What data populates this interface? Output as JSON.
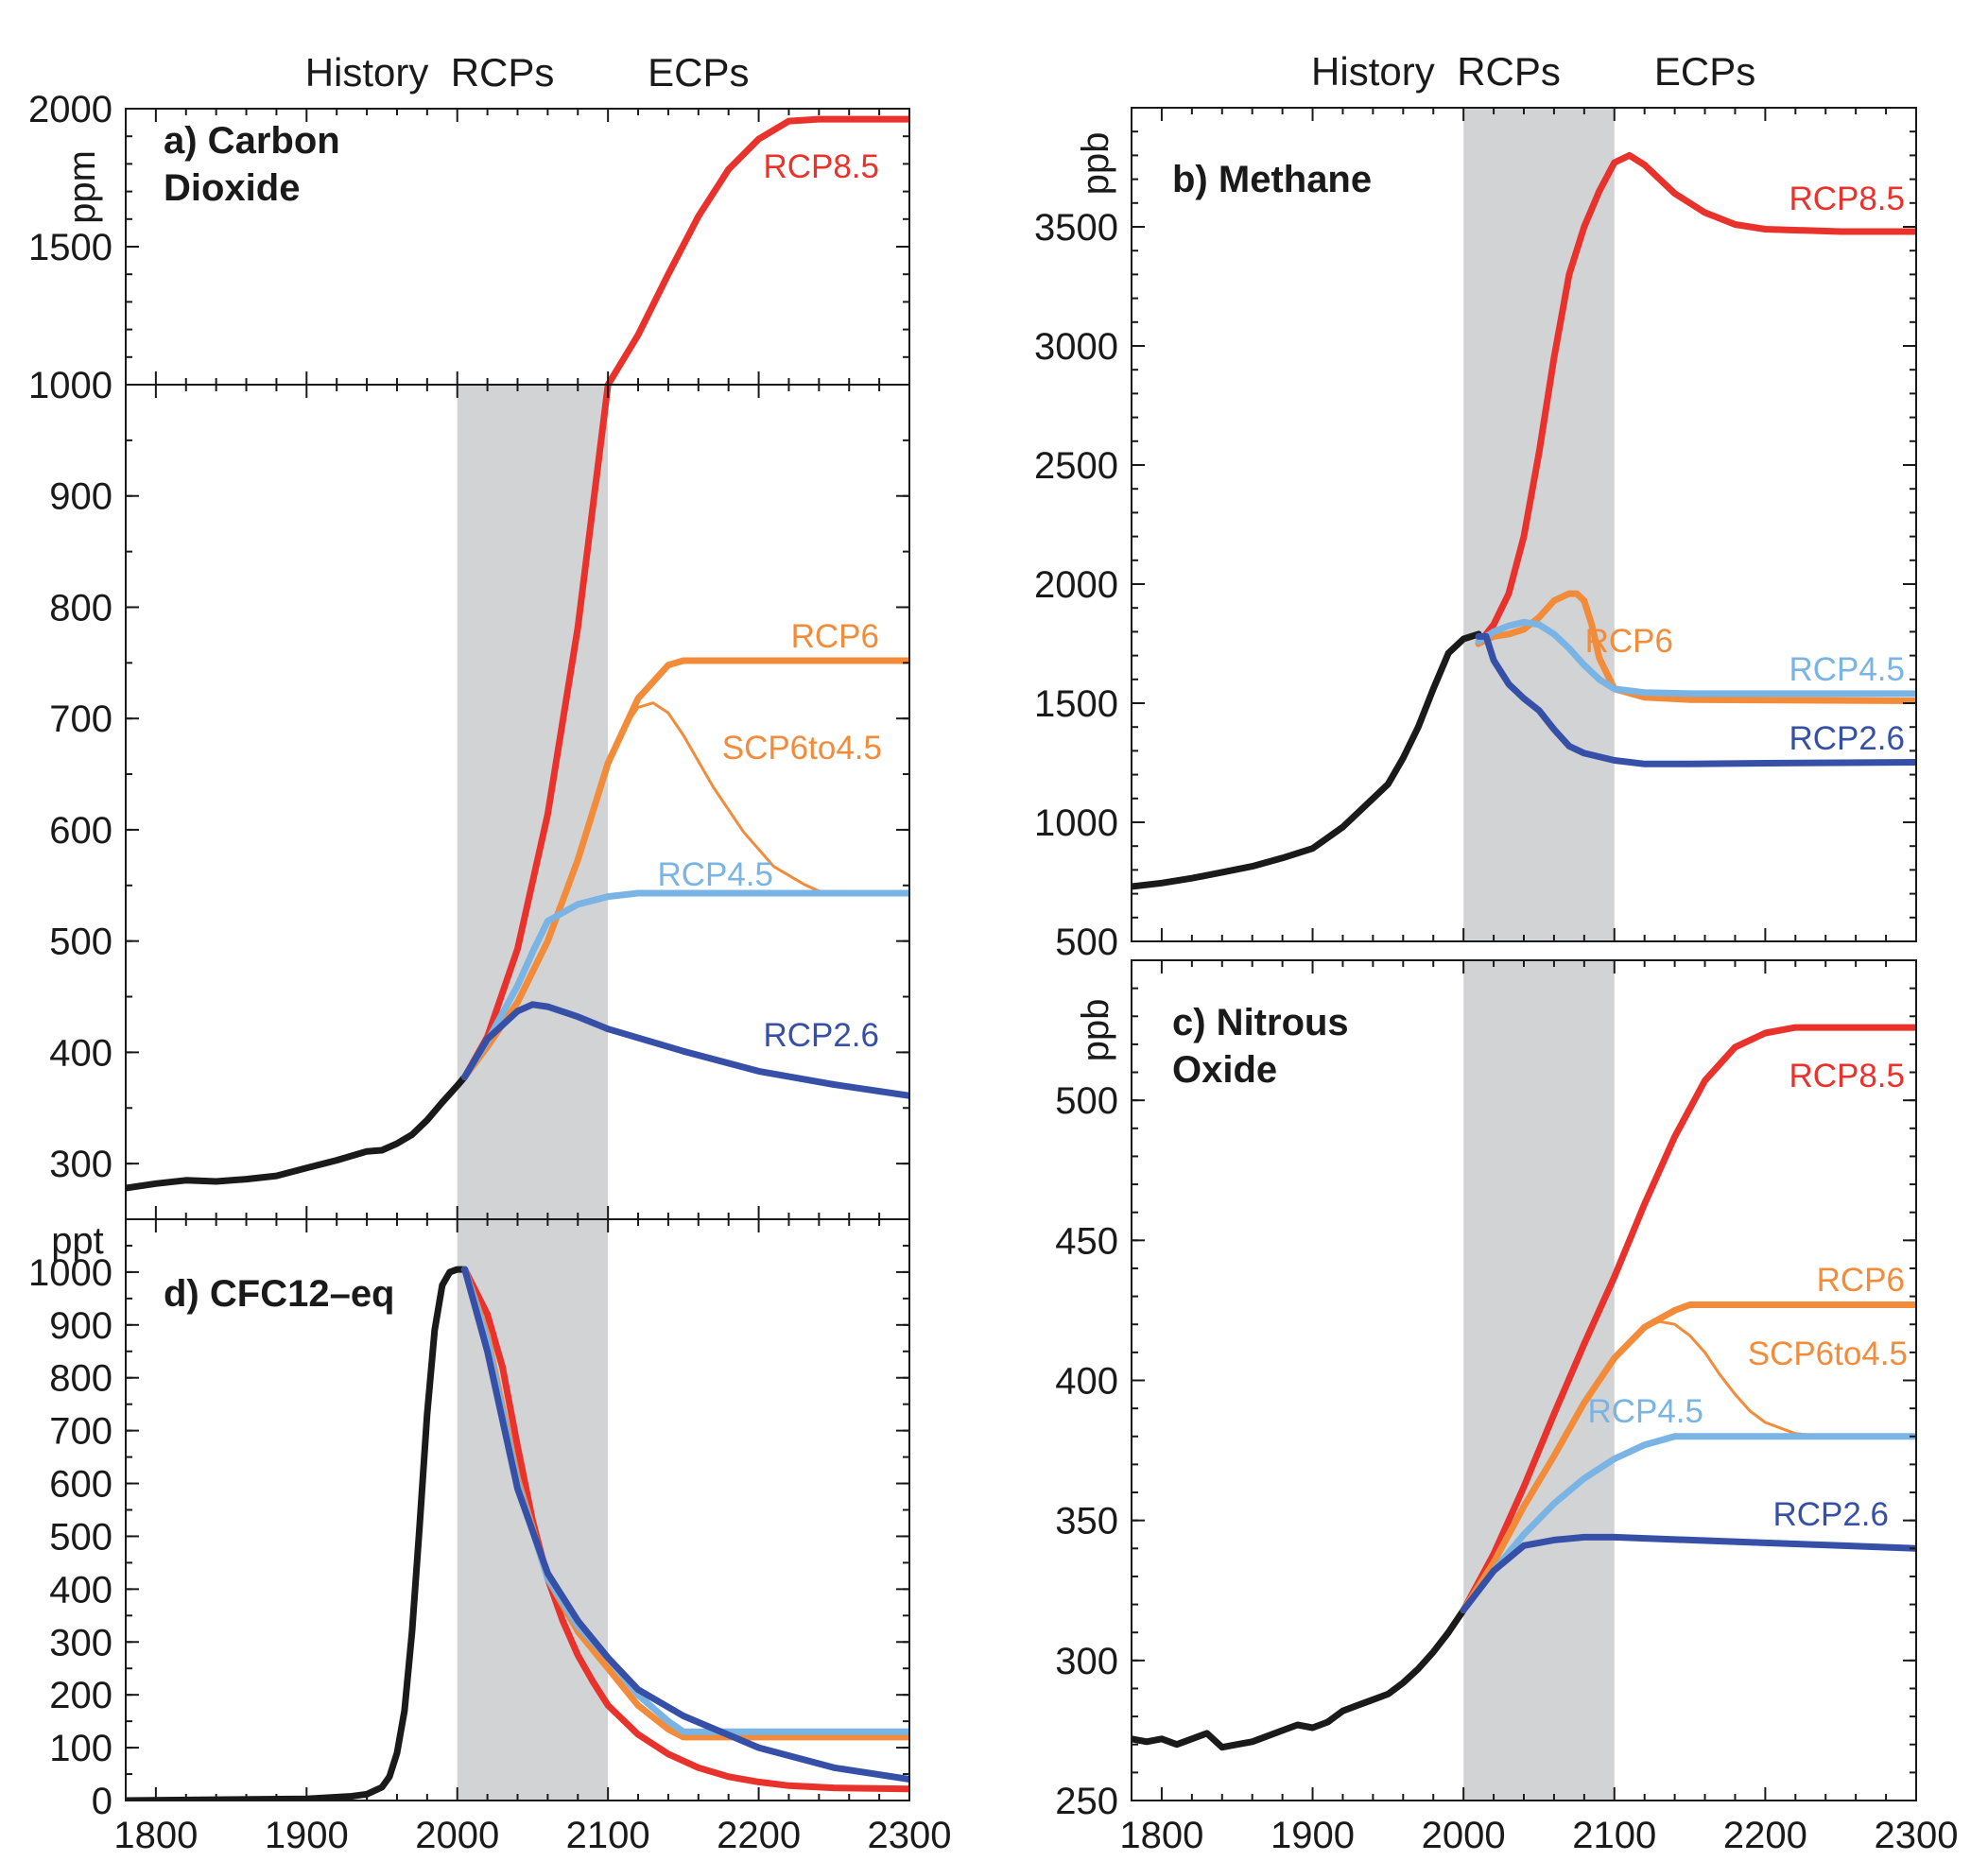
{
  "colors": {
    "History": "#1a1a1a",
    "RCP8.5": "#e8322b",
    "RCP6": "#f28c3b",
    "SCP6to4.5": "#f28c3b",
    "RCP4.5": "#7ab4e4",
    "RCP2.6": "#3650a8",
    "shade": "#d2d3d5"
  },
  "era_labels": [
    "History",
    "RCPs",
    "ECPs"
  ],
  "chart_data": [
    {
      "id": "a",
      "type": "line",
      "title": "a) Carbon Dioxide",
      "title_lines": [
        "a) Carbon",
        "Dioxide"
      ],
      "ylabel": "ppm",
      "xlim": [
        1780,
        2300
      ],
      "rcp_period": [
        2000,
        2100
      ],
      "broken_axis": {
        "lower": {
          "ylim": [
            250,
            1000
          ],
          "ticks": [
            300,
            400,
            500,
            600,
            700,
            800,
            900,
            1000
          ]
        },
        "upper": {
          "ylim": [
            1000,
            2000
          ],
          "ticks": [
            1000,
            1500,
            2000
          ]
        }
      },
      "series": [
        {
          "name": "History",
          "color_key": "History",
          "x": [
            1780,
            1800,
            1820,
            1840,
            1860,
            1880,
            1900,
            1920,
            1940,
            1950,
            1960,
            1970,
            1980,
            1990,
            2000,
            2005
          ],
          "y": [
            278,
            282,
            285,
            284,
            286,
            289,
            296,
            303,
            311,
            312,
            318,
            326,
            339,
            355,
            370,
            378
          ]
        },
        {
          "name": "RCP8.5",
          "color_key": "RCP8.5",
          "label_pos": "upper",
          "x": [
            2005,
            2020,
            2040,
            2060,
            2080,
            2100,
            2120,
            2140,
            2160,
            2180,
            2200,
            2220,
            2240,
            2250,
            2300
          ],
          "y": [
            378,
            414,
            493,
            614,
            782,
            1000,
            1180,
            1400,
            1610,
            1780,
            1890,
            1955,
            1962,
            1962,
            1962
          ]
        },
        {
          "name": "RCP6",
          "color_key": "RCP6",
          "label_pos": "lower",
          "x": [
            2005,
            2020,
            2040,
            2060,
            2080,
            2100,
            2120,
            2140,
            2150,
            2300
          ],
          "y": [
            378,
            405,
            445,
            500,
            573,
            660,
            718,
            748,
            752,
            752
          ]
        },
        {
          "name": "SCP6to4.5",
          "color_key": "SCP6to4.5",
          "thin": true,
          "label_pos": "lower",
          "x": [
            2100,
            2110,
            2120,
            2130,
            2140,
            2150,
            2170,
            2190,
            2210,
            2230,
            2240,
            2250
          ],
          "y": [
            660,
            690,
            710,
            714,
            705,
            685,
            638,
            598,
            567,
            551,
            545,
            543
          ]
        },
        {
          "name": "RCP4.5",
          "color_key": "RCP4.5",
          "label_pos": "lower",
          "x": [
            2005,
            2020,
            2040,
            2050,
            2060,
            2080,
            2100,
            2120,
            2150,
            2300
          ],
          "y": [
            378,
            410,
            460,
            490,
            518,
            533,
            540,
            543,
            543,
            543
          ]
        },
        {
          "name": "RCP2.6",
          "color_key": "RCP2.6",
          "label_pos": "lower",
          "x": [
            2005,
            2020,
            2040,
            2050,
            2060,
            2080,
            2100,
            2150,
            2200,
            2250,
            2300
          ],
          "y": [
            378,
            412,
            437,
            443,
            441,
            432,
            421,
            401,
            383,
            371,
            361
          ]
        }
      ]
    },
    {
      "id": "b",
      "type": "line",
      "title": "b) Methane",
      "title_lines": [
        "b) Methane"
      ],
      "ylabel": "ppb",
      "xlim": [
        1780,
        2300
      ],
      "ylim": [
        500,
        4000
      ],
      "yticks": [
        500,
        1000,
        1500,
        2000,
        2500,
        3000,
        3500
      ],
      "rcp_period": [
        2000,
        2100
      ],
      "series": [
        {
          "name": "History",
          "color_key": "History",
          "x": [
            1780,
            1800,
            1820,
            1840,
            1860,
            1880,
            1900,
            1920,
            1940,
            1950,
            1960,
            1970,
            1980,
            1990,
            2000,
            2010
          ],
          "y": [
            730,
            745,
            765,
            790,
            815,
            850,
            890,
            980,
            1100,
            1160,
            1270,
            1400,
            1560,
            1710,
            1770,
            1790
          ]
        },
        {
          "name": "RCP8.5",
          "color_key": "RCP8.5",
          "x": [
            2010,
            2020,
            2030,
            2040,
            2050,
            2060,
            2070,
            2080,
            2090,
            2100,
            2110,
            2120,
            2140,
            2160,
            2180,
            2200,
            2250,
            2300
          ],
          "y": [
            1750,
            1830,
            1960,
            2200,
            2550,
            2950,
            3300,
            3500,
            3650,
            3770,
            3800,
            3760,
            3640,
            3560,
            3510,
            3490,
            3480,
            3480
          ]
        },
        {
          "name": "RCP6",
          "color_key": "RCP6",
          "x": [
            2010,
            2020,
            2030,
            2040,
            2050,
            2060,
            2070,
            2075,
            2080,
            2085,
            2090,
            2100,
            2120,
            2150,
            2300
          ],
          "y": [
            1750,
            1780,
            1790,
            1810,
            1860,
            1930,
            1960,
            1960,
            1930,
            1830,
            1690,
            1560,
            1525,
            1515,
            1510
          ]
        },
        {
          "name": "RCP4.5",
          "color_key": "RCP4.5",
          "x": [
            2010,
            2020,
            2030,
            2040,
            2050,
            2060,
            2070,
            2080,
            2090,
            2100,
            2120,
            2150,
            2300
          ],
          "y": [
            1760,
            1800,
            1825,
            1840,
            1830,
            1790,
            1730,
            1660,
            1600,
            1560,
            1545,
            1540,
            1540
          ]
        },
        {
          "name": "RCP2.6",
          "color_key": "RCP2.6",
          "x": [
            2010,
            2015,
            2020,
            2030,
            2040,
            2050,
            2060,
            2070,
            2080,
            2100,
            2120,
            2150,
            2200,
            2250,
            2300
          ],
          "y": [
            1780,
            1780,
            1680,
            1580,
            1520,
            1470,
            1390,
            1320,
            1290,
            1260,
            1245,
            1245,
            1248,
            1250,
            1252
          ]
        }
      ]
    },
    {
      "id": "c",
      "type": "line",
      "title": "c) Nitrous Oxide",
      "title_lines": [
        "c) Nitrous",
        "Oxide"
      ],
      "ylabel": "ppb",
      "xlim": [
        1780,
        2300
      ],
      "ylim": [
        250,
        550
      ],
      "yticks": [
        250,
        300,
        350,
        400,
        450,
        500
      ],
      "rcp_period": [
        2000,
        2100
      ],
      "series": [
        {
          "name": "History",
          "color_key": "History",
          "x": [
            1780,
            1790,
            1800,
            1810,
            1820,
            1830,
            1840,
            1850,
            1860,
            1870,
            1880,
            1890,
            1900,
            1910,
            1920,
            1930,
            1940,
            1950,
            1960,
            1970,
            1980,
            1990,
            2000
          ],
          "y": [
            272,
            271,
            272,
            270,
            272,
            274,
            269,
            270,
            271,
            273,
            275,
            277,
            276,
            278,
            282,
            284,
            286,
            288,
            292,
            297,
            303,
            310,
            318
          ]
        },
        {
          "name": "RCP8.5",
          "color_key": "RCP8.5",
          "x": [
            2000,
            2020,
            2040,
            2060,
            2080,
            2100,
            2120,
            2140,
            2160,
            2180,
            2200,
            2220,
            2240,
            2300
          ],
          "y": [
            318,
            338,
            362,
            388,
            413,
            437,
            463,
            487,
            507,
            519,
            524,
            526,
            526,
            526
          ]
        },
        {
          "name": "RCP6",
          "color_key": "RCP6",
          "x": [
            2000,
            2020,
            2040,
            2060,
            2080,
            2100,
            2120,
            2140,
            2150,
            2300
          ],
          "y": [
            318,
            335,
            355,
            373,
            392,
            408,
            419,
            425,
            427,
            427
          ]
        },
        {
          "name": "SCP6to4.5",
          "color_key": "SCP6to4.5",
          "thin": true,
          "x": [
            2120,
            2130,
            2140,
            2150,
            2160,
            2170,
            2180,
            2190,
            2200,
            2220,
            2240
          ],
          "y": [
            419,
            421,
            420,
            416,
            410,
            402,
            395,
            389,
            385,
            381,
            380
          ]
        },
        {
          "name": "RCP4.5",
          "color_key": "RCP4.5",
          "x": [
            2000,
            2020,
            2040,
            2060,
            2080,
            2100,
            2120,
            2140,
            2150,
            2300
          ],
          "y": [
            318,
            332,
            345,
            356,
            365,
            372,
            377,
            380,
            380,
            380
          ]
        },
        {
          "name": "RCP2.6",
          "color_key": "RCP2.6",
          "x": [
            2000,
            2020,
            2040,
            2060,
            2080,
            2100,
            2150,
            2200,
            2250,
            2300
          ],
          "y": [
            318,
            332,
            341,
            343,
            344,
            344,
            343,
            342,
            341,
            340
          ]
        }
      ]
    },
    {
      "id": "d",
      "type": "line",
      "title": "d) CFC12–eq",
      "title_lines": [
        "d) CFC12–eq"
      ],
      "ylabel": "ppt",
      "xlim": [
        1780,
        2300
      ],
      "ylim": [
        0,
        1100
      ],
      "yticks": [
        0,
        100,
        200,
        300,
        400,
        500,
        600,
        700,
        800,
        900,
        1000
      ],
      "rcp_period": [
        2000,
        2100
      ],
      "series": [
        {
          "name": "History",
          "color_key": "History",
          "x": [
            1780,
            1900,
            1930,
            1940,
            1950,
            1955,
            1960,
            1965,
            1970,
            1975,
            1980,
            1985,
            1990,
            1995,
            2000,
            2005
          ],
          "y": [
            0,
            3,
            8,
            12,
            25,
            45,
            90,
            170,
            320,
            520,
            730,
            890,
            975,
            1000,
            1005,
            1005
          ]
        },
        {
          "name": "RCP8.5",
          "color_key": "RCP8.5",
          "x": [
            2005,
            2020,
            2030,
            2040,
            2050,
            2060,
            2070,
            2080,
            2090,
            2100,
            2120,
            2140,
            2160,
            2180,
            2200,
            2220,
            2250,
            2300
          ],
          "y": [
            1005,
            920,
            820,
            670,
            530,
            420,
            340,
            275,
            225,
            180,
            125,
            88,
            62,
            45,
            35,
            28,
            24,
            22
          ]
        },
        {
          "name": "RCP6",
          "color_key": "RCP6",
          "x": [
            2005,
            2020,
            2040,
            2060,
            2080,
            2100,
            2120,
            2140,
            2150,
            2300
          ],
          "y": [
            1005,
            880,
            610,
            420,
            320,
            250,
            180,
            135,
            120,
            120
          ]
        },
        {
          "name": "RCP4.5",
          "color_key": "RCP4.5",
          "x": [
            2005,
            2020,
            2040,
            2060,
            2080,
            2100,
            2120,
            2140,
            2150,
            2300
          ],
          "y": [
            1005,
            870,
            600,
            420,
            330,
            270,
            200,
            150,
            130,
            130
          ]
        },
        {
          "name": "RCP2.6",
          "color_key": "RCP2.6",
          "x": [
            2005,
            2020,
            2040,
            2060,
            2080,
            2100,
            2120,
            2150,
            2200,
            2250,
            2300
          ],
          "y": [
            1005,
            850,
            590,
            430,
            340,
            270,
            210,
            160,
            100,
            62,
            40
          ]
        }
      ]
    }
  ]
}
